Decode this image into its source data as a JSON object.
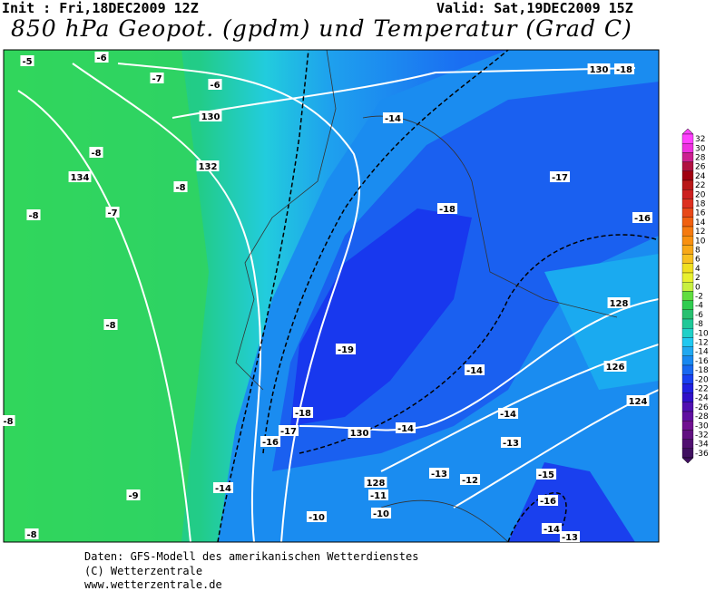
{
  "header": {
    "init": "Init : Fri,18DEC2009 12Z",
    "valid": "Valid: Sat,19DEC2009 15Z",
    "title": "850 hPa Geopot. (gpdm) und Temperatur (Grad C)"
  },
  "map": {
    "labels": [
      "-5",
      "-6",
      "-7",
      "-6",
      "130",
      "-14",
      "130",
      "-18",
      "-8",
      "134",
      "132",
      "-8",
      "-17",
      "-8",
      "-7",
      "-18",
      "-16",
      "128",
      "-8",
      "-19",
      "-14",
      "126",
      "124",
      "-8",
      "-18",
      "-17",
      "-16",
      "130",
      "-14",
      "-14",
      "-13",
      "-13",
      "-12",
      "-15",
      "-14",
      "128",
      "-11",
      "-9",
      "-16",
      "-10",
      "-10",
      "-14",
      "-13",
      "-8"
    ]
  },
  "colorbar": {
    "labels": [
      32,
      30,
      28,
      26,
      24,
      22,
      20,
      18,
      16,
      14,
      12,
      10,
      8,
      6,
      4,
      2,
      0,
      -2,
      -4,
      -6,
      -8,
      -10,
      -12,
      -14,
      -16,
      -18,
      -20,
      -22,
      -24,
      -26,
      -28,
      -30,
      -32,
      -34,
      -36
    ]
  },
  "footer": {
    "line1": "Daten: GFS-Modell des amerikanischen Wetterdienstes",
    "line2": "(C) Wetterzentrale",
    "line3": "www.wetterzentrale.de"
  }
}
